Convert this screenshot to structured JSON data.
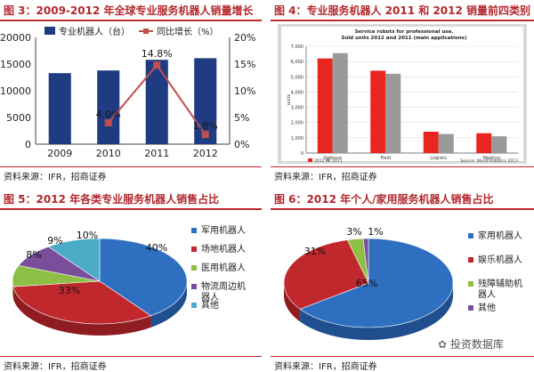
{
  "panels": [
    {
      "title": "图 3：2009-2012 年全球专业服务机器人销量增长",
      "source": "资料来源：IFR，招商证券"
    },
    {
      "title": "图 4：专业服务机器人 2011 和 2012 销量前四类别",
      "source": "资料来源：IFR，招商证券"
    },
    {
      "title": "图 5：2012 年各类专业服务机器人销售占比",
      "source": "资料来源：IFR，招商证券"
    },
    {
      "title": "图 6：2012 年个人/家用服务机器人销售占比",
      "source": "资料来源：IFR，招商证券"
    }
  ],
  "watermark": "投资数据库",
  "colors": {
    "title_red": "#b3282d",
    "navy": "#1f3b82",
    "line_red": "#c0504d",
    "blue": "#2e6fc0",
    "red": "#c0282e",
    "green": "#8dbf45",
    "purple": "#7a4e9a",
    "cyan": "#4bacc6",
    "gray": "#a5a5a5"
  },
  "chart_data": [
    {
      "type": "bar",
      "categories": [
        "2009",
        "2010",
        "2011",
        "2012"
      ],
      "series": [
        {
          "name": "专业机器人（台）",
          "values": [
            13300,
            13800,
            15800,
            16100
          ],
          "axis": "left"
        },
        {
          "name": "同比增长（%）",
          "type": "line",
          "values": [
            null,
            4.0,
            14.8,
            1.8
          ],
          "axis": "right"
        }
      ],
      "data_labels": [
        "4.0%",
        "14.8%",
        "1.8%"
      ],
      "y_ticks": [
        "0",
        "5000",
        "10000",
        "15000",
        "20000"
      ],
      "y2_ticks": [
        "0%",
        "5%",
        "10%",
        "15%",
        "20%"
      ],
      "ylim": [
        0,
        20000
      ],
      "y2lim": [
        0,
        20
      ],
      "legend": "top"
    },
    {
      "type": "bar",
      "title": "Service robots for professional use. Sold units 2012 and 2011 (main applications)",
      "categories": [
        "Defence",
        "Field",
        "Logistic",
        "Medical"
      ],
      "series": [
        {
          "name": "2012",
          "values": [
            6200,
            5400,
            1400,
            1300
          ]
        },
        {
          "name": "2011",
          "values": [
            6550,
            5200,
            1250,
            1100
          ]
        }
      ],
      "ylabel": "units",
      "y_ticks": [
        "0",
        "1,000",
        "2,000",
        "3,000",
        "4,000",
        "5,000",
        "6,000",
        "7,000"
      ],
      "ylim": [
        0,
        7000
      ],
      "note": "Source: World Robotics 2013",
      "legend": "bottom-left"
    },
    {
      "type": "pie",
      "labels": [
        "军用机器人",
        "场地机器人",
        "医用机器人",
        "物流周边机器人",
        "其他"
      ],
      "values": [
        40,
        33,
        8,
        9,
        10
      ],
      "pct_labels": [
        "40%",
        "33%",
        "8%",
        "9%",
        "10%"
      ],
      "legend": "right"
    },
    {
      "type": "pie",
      "labels": [
        "家用机器人",
        "娱乐机器人",
        "残障辅助机器人",
        "其他"
      ],
      "values": [
        65,
        31,
        3,
        1
      ],
      "pct_labels": [
        "65%",
        "31%",
        "3%",
        "1%"
      ],
      "legend": "right"
    }
  ]
}
